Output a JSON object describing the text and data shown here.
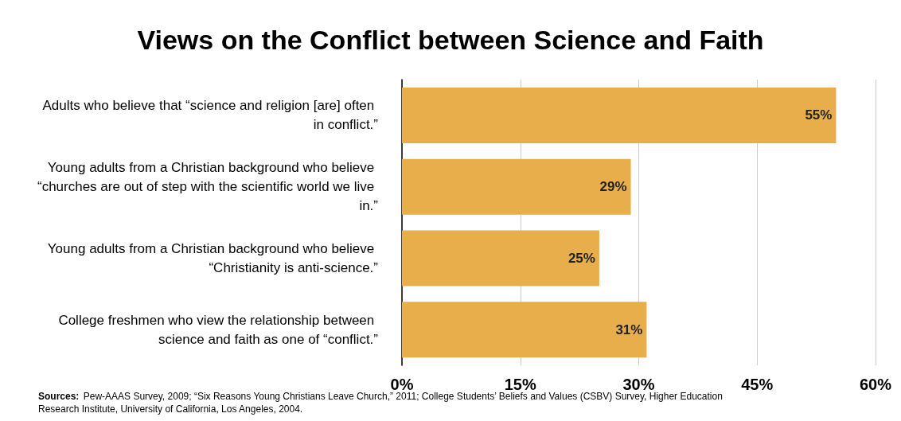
{
  "chart_data": {
    "type": "bar",
    "orientation": "horizontal",
    "title": "Views on the Conflict between Science and Faith",
    "categories": [
      "Adults who believe that “science and religion [are] often in conflict.”",
      "Young adults from a Christian background who believe “churches are out of step with the scientific world we live in.”",
      "Young adults from a Christian background who believe “Christianity is anti-science.”",
      "College freshmen who view the relationship between science and faith as one of “conflict.”"
    ],
    "values": [
      55,
      29,
      25,
      31
    ],
    "color": "#e8ae4b",
    "value_labels": [
      "55%",
      "29%",
      "25%",
      "31%"
    ],
    "xlim": [
      0,
      60
    ],
    "xticks": [
      {
        "value": 0,
        "label": "0%"
      },
      {
        "value": 15,
        "label": "15%"
      },
      {
        "value": 30,
        "label": "30%"
      },
      {
        "value": 45,
        "label": "45%"
      },
      {
        "value": 60,
        "label": "60%"
      }
    ],
    "grid": "x",
    "annotations": [
      "Sources: Pew-AAAS Survey, 2009; “Six Reasons Young Christians Leave Church,” 2011; College Students’ Beliefs and Values (CSBV) Survey, Higher Education Research Institute, University of California, Los Angeles, 2004."
    ]
  }
}
